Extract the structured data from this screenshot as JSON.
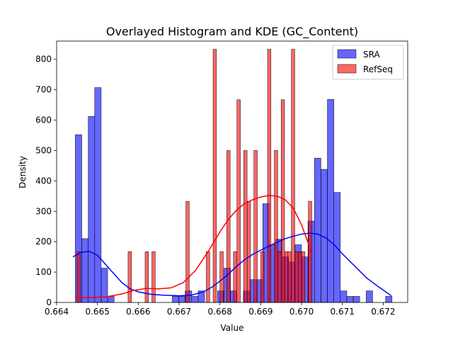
{
  "chart_data": {
    "type": "histogram",
    "title": "Overlayed Histogram and KDE (GC_Content)",
    "xlabel": "Value",
    "ylabel": "Density",
    "xlim": [
      0.664,
      0.6726
    ],
    "ylim": [
      0,
      860
    ],
    "xticks": [
      "0.664",
      "0.665",
      "0.666",
      "0.667",
      "0.668",
      "0.669",
      "0.670",
      "0.671",
      "0.672"
    ],
    "xtick_values": [
      0.664,
      0.665,
      0.666,
      0.667,
      0.668,
      0.669,
      0.67,
      0.671,
      0.672
    ],
    "yticks": [
      "0",
      "100",
      "200",
      "300",
      "400",
      "500",
      "600",
      "700",
      "800"
    ],
    "ytick_values": [
      0,
      100,
      200,
      300,
      400,
      500,
      600,
      700,
      800
    ],
    "grid": false,
    "legend_position": "top-right",
    "series": [
      {
        "name": "SRA",
        "color": "#0000ff",
        "bin_width": 0.000158,
        "bins": [
          [
            0.664458,
            552
          ],
          [
            0.664616,
            210
          ],
          [
            0.664775,
            612
          ],
          [
            0.664933,
            707
          ],
          [
            0.665091,
            113
          ],
          [
            0.66525,
            20
          ],
          [
            0.666833,
            20
          ],
          [
            0.666991,
            20
          ],
          [
            0.66715,
            38
          ],
          [
            0.667308,
            20
          ],
          [
            0.667466,
            38
          ],
          [
            0.667941,
            38
          ],
          [
            0.6681,
            113
          ],
          [
            0.668258,
            38
          ],
          [
            0.668575,
            38
          ],
          [
            0.668733,
            75
          ],
          [
            0.668891,
            75
          ],
          [
            0.66905,
            325
          ],
          [
            0.669208,
            190
          ],
          [
            0.669366,
            208
          ],
          [
            0.669525,
            150
          ],
          [
            0.669683,
            133
          ],
          [
            0.669841,
            190
          ],
          [
            0.67,
            150
          ],
          [
            0.670158,
            268
          ],
          [
            0.670316,
            475
          ],
          [
            0.670475,
            438
          ],
          [
            0.670633,
            668
          ],
          [
            0.670791,
            362
          ],
          [
            0.67095,
            38
          ],
          [
            0.671108,
            20
          ],
          [
            0.671266,
            20
          ],
          [
            0.671583,
            38
          ],
          [
            0.672058,
            20
          ]
        ],
        "kde": [
          [
            0.6644,
            150
          ],
          [
            0.6646,
            165
          ],
          [
            0.6648,
            168
          ],
          [
            0.665,
            155
          ],
          [
            0.6652,
            125
          ],
          [
            0.6654,
            95
          ],
          [
            0.6656,
            65
          ],
          [
            0.6658,
            45
          ],
          [
            0.666,
            35
          ],
          [
            0.6663,
            27
          ],
          [
            0.6666,
            24
          ],
          [
            0.667,
            22
          ],
          [
            0.6673,
            24
          ],
          [
            0.6676,
            35
          ],
          [
            0.6678,
            50
          ],
          [
            0.668,
            70
          ],
          [
            0.6682,
            92
          ],
          [
            0.6684,
            118
          ],
          [
            0.6686,
            140
          ],
          [
            0.6688,
            158
          ],
          [
            0.669,
            172
          ],
          [
            0.6692,
            185
          ],
          [
            0.6694,
            198
          ],
          [
            0.6696,
            210
          ],
          [
            0.6698,
            218
          ],
          [
            0.67,
            225
          ],
          [
            0.6702,
            228
          ],
          [
            0.6704,
            225
          ],
          [
            0.6706,
            212
          ],
          [
            0.6708,
            190
          ],
          [
            0.671,
            160
          ],
          [
            0.6713,
            120
          ],
          [
            0.6716,
            80
          ],
          [
            0.6719,
            50
          ],
          [
            0.6722,
            22
          ]
        ]
      },
      {
        "name": "RefSeq",
        "color": "#ff0000",
        "bin_width": 8.3e-05,
        "bins": [
          [
            0.6645,
            167
          ],
          [
            0.66575,
            167
          ],
          [
            0.666167,
            167
          ],
          [
            0.666333,
            167
          ],
          [
            0.667167,
            333
          ],
          [
            0.667667,
            167
          ],
          [
            0.667833,
            833
          ],
          [
            0.668,
            167
          ],
          [
            0.668167,
            500
          ],
          [
            0.668333,
            167
          ],
          [
            0.668417,
            667
          ],
          [
            0.668583,
            500
          ],
          [
            0.668667,
            333
          ],
          [
            0.668833,
            500
          ],
          [
            0.669,
            167
          ],
          [
            0.669167,
            833
          ],
          [
            0.669333,
            500
          ],
          [
            0.669417,
            167
          ],
          [
            0.6695,
            667
          ],
          [
            0.669583,
            167
          ],
          [
            0.669667,
            167
          ],
          [
            0.66975,
            833
          ],
          [
            0.669833,
            167
          ],
          [
            0.669917,
            167
          ],
          [
            0.67,
            167
          ],
          [
            0.670167,
            333
          ]
        ],
        "kde": [
          [
            0.66445,
            15
          ],
          [
            0.6648,
            16
          ],
          [
            0.6652,
            18
          ],
          [
            0.6656,
            28
          ],
          [
            0.6659,
            40
          ],
          [
            0.6662,
            46
          ],
          [
            0.6665,
            45
          ],
          [
            0.6668,
            48
          ],
          [
            0.6671,
            65
          ],
          [
            0.6674,
            105
          ],
          [
            0.6677,
            165
          ],
          [
            0.668,
            232
          ],
          [
            0.6682,
            272
          ],
          [
            0.6684,
            303
          ],
          [
            0.6686,
            325
          ],
          [
            0.6688,
            338
          ],
          [
            0.669,
            347
          ],
          [
            0.6692,
            352
          ],
          [
            0.6694,
            350
          ],
          [
            0.6696,
            338
          ],
          [
            0.6698,
            310
          ],
          [
            0.67,
            255
          ],
          [
            0.67015,
            200
          ],
          [
            0.67025,
            160
          ]
        ]
      }
    ]
  }
}
